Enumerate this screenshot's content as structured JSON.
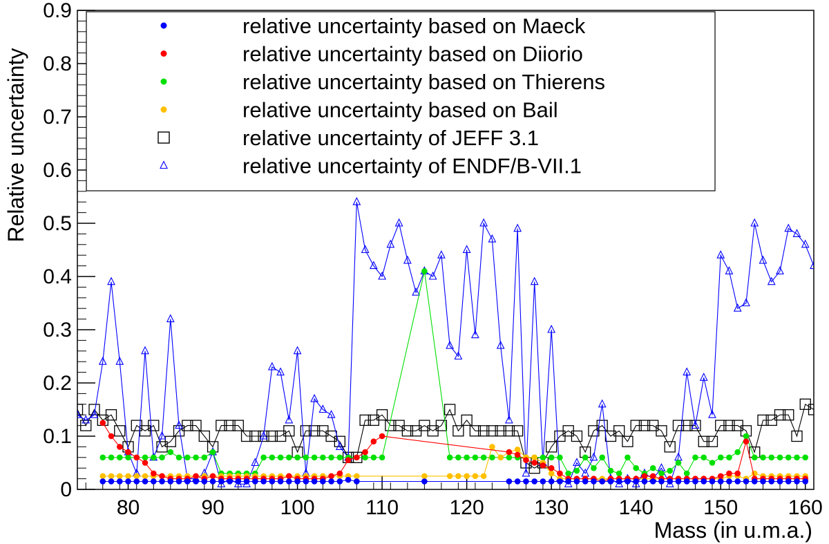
{
  "chart_data": {
    "type": "line",
    "title": "",
    "xlabel": "Mass (in u.m.a.)",
    "ylabel": "Relative uncertainty",
    "xlim": [
      74,
      161
    ],
    "ylim": [
      0,
      0.9
    ],
    "xticks": [
      80,
      90,
      100,
      110,
      120,
      130,
      140,
      150,
      160
    ],
    "yticks": [
      0,
      0.1,
      0.2,
      0.3,
      0.4,
      0.5,
      0.6,
      0.7,
      0.8,
      0.9
    ],
    "ytick_labels": [
      "0",
      "0.1",
      "0.2",
      "0.3",
      "0.4",
      "0.5",
      "0.6",
      "0.7",
      "0.8",
      "0.9"
    ],
    "legend_position": "top",
    "grid": false,
    "series": [
      {
        "name": "relative uncertainty based on Maeck",
        "color": "#0000ff",
        "marker": "dot",
        "x": [
          77,
          78,
          79,
          80,
          81,
          82,
          83,
          84,
          85,
          86,
          87,
          88,
          89,
          90,
          91,
          92,
          93,
          94,
          95,
          96,
          97,
          98,
          99,
          100,
          101,
          102,
          103,
          104,
          105,
          106,
          107,
          115,
          125,
          126,
          127,
          128,
          129,
          130,
          131,
          132,
          133,
          134,
          135,
          136,
          137,
          138,
          139,
          140,
          141,
          142,
          143,
          144,
          145,
          146,
          147,
          148,
          149,
          150,
          151,
          152,
          153,
          154,
          155,
          156,
          157,
          158,
          159,
          160
        ],
        "y": [
          0.015,
          0.015,
          0.015,
          0.015,
          0.015,
          0.015,
          0.015,
          0.015,
          0.015,
          0.015,
          0.015,
          0.015,
          0.015,
          0.015,
          0.015,
          0.015,
          0.015,
          0.015,
          0.015,
          0.015,
          0.015,
          0.015,
          0.015,
          0.015,
          0.015,
          0.015,
          0.015,
          0.015,
          0.015,
          0.018,
          0.015,
          0.015,
          0.015,
          0.015,
          0.015,
          0.015,
          0.015,
          0.015,
          0.015,
          0.015,
          0.015,
          0.015,
          0.015,
          0.015,
          0.015,
          0.015,
          0.015,
          0.015,
          0.015,
          0.015,
          0.015,
          0.015,
          0.015,
          0.015,
          0.015,
          0.015,
          0.015,
          0.015,
          0.015,
          0.015,
          0.015,
          0.015,
          0.015,
          0.015,
          0.015,
          0.015,
          0.015,
          0.015
        ]
      },
      {
        "name": "relative uncertainty based on Diiorio",
        "color": "#ff0000",
        "marker": "dot",
        "x": [
          77,
          78,
          79,
          80,
          81,
          82,
          83,
          84,
          85,
          86,
          87,
          88,
          89,
          90,
          91,
          92,
          93,
          94,
          95,
          96,
          97,
          98,
          99,
          100,
          101,
          102,
          103,
          104,
          105,
          106,
          107,
          108,
          109,
          110,
          125,
          126,
          127,
          128,
          129,
          130,
          131,
          132,
          133,
          134,
          135,
          136,
          137,
          138,
          139,
          140,
          141,
          142,
          143,
          144,
          145,
          146,
          147,
          148,
          149,
          150,
          151,
          152,
          153,
          154,
          155,
          156,
          157,
          158,
          159,
          160
        ],
        "y": [
          0.125,
          0.1,
          0.08,
          0.07,
          0.06,
          0.05,
          0.03,
          0.025,
          0.02,
          0.02,
          0.02,
          0.025,
          0.02,
          0.025,
          0.02,
          0.02,
          0.02,
          0.02,
          0.02,
          0.02,
          0.02,
          0.02,
          0.025,
          0.02,
          0.02,
          0.02,
          0.02,
          0.025,
          0.03,
          0.055,
          0.06,
          0.07,
          0.09,
          0.1,
          0.07,
          0.065,
          0.055,
          0.05,
          0.045,
          0.04,
          0.03,
          0.02,
          0.02,
          0.02,
          0.02,
          0.015,
          0.02,
          0.02,
          0.02,
          0.02,
          0.025,
          0.025,
          0.02,
          0.02,
          0.02,
          0.02,
          0.02,
          0.02,
          0.02,
          0.025,
          0.03,
          0.03,
          0.09,
          0.02,
          0.02,
          0.02,
          0.02,
          0.02,
          0.02,
          0.02
        ]
      },
      {
        "name": "relative uncertainty based on Thierens",
        "color": "#00e000",
        "marker": "dot",
        "x": [
          77,
          78,
          79,
          80,
          81,
          82,
          83,
          84,
          85,
          86,
          87,
          88,
          89,
          90,
          91,
          92,
          93,
          94,
          95,
          96,
          97,
          98,
          99,
          100,
          101,
          102,
          103,
          104,
          105,
          106,
          107,
          108,
          109,
          110,
          115,
          118,
          119,
          120,
          121,
          122,
          123,
          124,
          125,
          126,
          127,
          128,
          129,
          130,
          131,
          132,
          133,
          134,
          135,
          136,
          137,
          138,
          139,
          140,
          141,
          142,
          143,
          144,
          145,
          146,
          147,
          148,
          149,
          150,
          151,
          152,
          153,
          154,
          155,
          156,
          157,
          158,
          159,
          160
        ],
        "y": [
          0.06,
          0.06,
          0.06,
          0.06,
          0.06,
          0.06,
          0.06,
          0.06,
          0.07,
          0.06,
          0.06,
          0.06,
          0.06,
          0.07,
          0.03,
          0.03,
          0.03,
          0.03,
          0.03,
          0.06,
          0.06,
          0.06,
          0.06,
          0.06,
          0.06,
          0.06,
          0.06,
          0.06,
          0.06,
          0.06,
          0.06,
          0.06,
          0.06,
          0.06,
          0.41,
          0.06,
          0.06,
          0.06,
          0.06,
          0.06,
          0.06,
          0.06,
          0.06,
          0.06,
          0.06,
          0.06,
          0.06,
          0.06,
          0.06,
          0.03,
          0.035,
          0.06,
          0.04,
          0.06,
          0.035,
          0.03,
          0.06,
          0.04,
          0.03,
          0.04,
          0.03,
          0.035,
          0.05,
          0.03,
          0.06,
          0.06,
          0.05,
          0.06,
          0.06,
          0.07,
          0.1,
          0.06,
          0.06,
          0.06,
          0.06,
          0.06,
          0.06,
          0.06
        ]
      },
      {
        "name": "relative uncertainty based on Bail",
        "color": "#ffc000",
        "marker": "dot",
        "x": [
          77,
          78,
          79,
          80,
          81,
          82,
          83,
          84,
          85,
          86,
          87,
          88,
          89,
          90,
          91,
          92,
          93,
          94,
          95,
          96,
          97,
          98,
          99,
          100,
          101,
          102,
          103,
          104,
          105,
          106,
          107,
          115,
          118,
          119,
          120,
          121,
          122,
          123,
          124,
          125,
          126,
          127,
          128,
          129,
          130,
          131,
          132,
          133,
          134,
          135,
          136,
          137,
          138,
          139,
          140,
          141,
          142,
          143,
          144,
          145,
          146,
          147,
          148,
          149,
          150,
          151,
          152,
          153,
          154,
          155,
          156,
          157,
          158,
          159,
          160
        ],
        "y": [
          0.025,
          0.025,
          0.025,
          0.025,
          0.025,
          0.025,
          0.025,
          0.025,
          0.025,
          0.025,
          0.025,
          0.025,
          0.025,
          0.025,
          0.025,
          0.025,
          0.025,
          0.025,
          0.025,
          0.025,
          0.025,
          0.025,
          0.025,
          0.025,
          0.025,
          0.025,
          0.025,
          0.025,
          0.025,
          0.025,
          0.025,
          0.025,
          0.025,
          0.025,
          0.025,
          0.025,
          0.025,
          0.08,
          0.06,
          0.07,
          0.075,
          0.06,
          0.06,
          0.05,
          0.03,
          0.02,
          0.02,
          0.02,
          0.02,
          0.02,
          0.02,
          0.02,
          0.02,
          0.02,
          0.02,
          0.02,
          0.02,
          0.02,
          0.02,
          0.02,
          0.02,
          0.02,
          0.02,
          0.02,
          0.02,
          0.025,
          0.025,
          0.02,
          0.03,
          0.025,
          0.025,
          0.025,
          0.025,
          0.025,
          0.025
        ]
      },
      {
        "name": "relative uncertainty of JEFF 3.1",
        "color": "#000000",
        "marker": "open-square",
        "x": [
          74,
          75,
          76,
          77,
          78,
          79,
          80,
          81,
          82,
          83,
          84,
          85,
          86,
          87,
          88,
          89,
          90,
          91,
          92,
          93,
          94,
          95,
          96,
          97,
          98,
          99,
          100,
          101,
          102,
          103,
          104,
          105,
          106,
          107,
          108,
          109,
          110,
          111,
          112,
          113,
          114,
          115,
          116,
          117,
          118,
          119,
          120,
          121,
          122,
          123,
          124,
          125,
          126,
          127,
          128,
          129,
          130,
          131,
          132,
          133,
          134,
          135,
          136,
          137,
          138,
          139,
          140,
          141,
          142,
          143,
          144,
          145,
          146,
          147,
          148,
          149,
          150,
          151,
          152,
          153,
          154,
          155,
          156,
          157,
          158,
          159,
          160,
          161
        ],
        "y": [
          0.15,
          0.12,
          0.15,
          0.13,
          0.14,
          0.11,
          0.08,
          0.12,
          0.11,
          0.12,
          0.08,
          0.09,
          0.11,
          0.12,
          0.12,
          0.1,
          0.08,
          0.12,
          0.12,
          0.12,
          0.1,
          0.1,
          0.1,
          0.1,
          0.1,
          0.11,
          0.07,
          0.11,
          0.11,
          0.11,
          0.1,
          0.09,
          0.06,
          0.06,
          0.13,
          0.13,
          0.14,
          0.12,
          0.12,
          0.11,
          0.11,
          0.12,
          0.11,
          0.12,
          0.15,
          0.11,
          0.13,
          0.11,
          0.11,
          0.11,
          0.11,
          0.11,
          0.11,
          0.05,
          0.04,
          0.05,
          0.08,
          0.1,
          0.11,
          0.1,
          0.07,
          0.11,
          0.12,
          0.1,
          0.11,
          0.09,
          0.12,
          0.12,
          0.12,
          0.11,
          0.08,
          0.12,
          0.12,
          0.12,
          0.09,
          0.09,
          0.12,
          0.12,
          0.12,
          0.11,
          0.07,
          0.13,
          0.13,
          0.14,
          0.14,
          0.1,
          0.16,
          0.15
        ]
      },
      {
        "name": "relative uncertainty of ENDF/B-VII.1",
        "color": "#0000ff",
        "marker": "open-triangle",
        "x": [
          74,
          75,
          76,
          77,
          78,
          79,
          80,
          81,
          82,
          83,
          84,
          85,
          86,
          87,
          88,
          89,
          90,
          91,
          92,
          93,
          94,
          95,
          96,
          97,
          98,
          99,
          100,
          101,
          102,
          103,
          104,
          105,
          106,
          107,
          108,
          109,
          110,
          111,
          112,
          113,
          114,
          115,
          116,
          117,
          118,
          119,
          120,
          121,
          122,
          123,
          124,
          125,
          126,
          127,
          128,
          129,
          130,
          131,
          132,
          133,
          134,
          135,
          136,
          137,
          138,
          139,
          140,
          141,
          142,
          143,
          144,
          145,
          146,
          147,
          148,
          149,
          150,
          151,
          152,
          153,
          154,
          155,
          156,
          157,
          158,
          159,
          160,
          161
        ],
        "y": [
          0.14,
          0.13,
          0.14,
          0.24,
          0.39,
          0.24,
          0.07,
          0.03,
          0.26,
          0.06,
          0.1,
          0.32,
          0.12,
          0.02,
          0.02,
          0.03,
          0.07,
          0.01,
          0.02,
          0.01,
          0.01,
          0.05,
          0.1,
          0.23,
          0.22,
          0.13,
          0.26,
          0.03,
          0.17,
          0.15,
          0.14,
          0.08,
          0.06,
          0.54,
          0.45,
          0.42,
          0.4,
          0.46,
          0.5,
          0.43,
          0.37,
          0.41,
          0.4,
          0.44,
          0.27,
          0.25,
          0.45,
          0.29,
          0.5,
          0.47,
          0.27,
          0.13,
          0.49,
          0.03,
          0.39,
          0.05,
          0.3,
          0.02,
          0.01,
          0.05,
          0.03,
          0.06,
          0.16,
          0.02,
          0.01,
          0.02,
          0.01,
          0.03,
          0.02,
          0.04,
          0.01,
          0.06,
          0.22,
          0.12,
          0.21,
          0.14,
          0.44,
          0.41,
          0.34,
          0.35,
          0.5,
          0.43,
          0.39,
          0.41,
          0.49,
          0.48,
          0.46,
          0.42
        ]
      }
    ]
  }
}
